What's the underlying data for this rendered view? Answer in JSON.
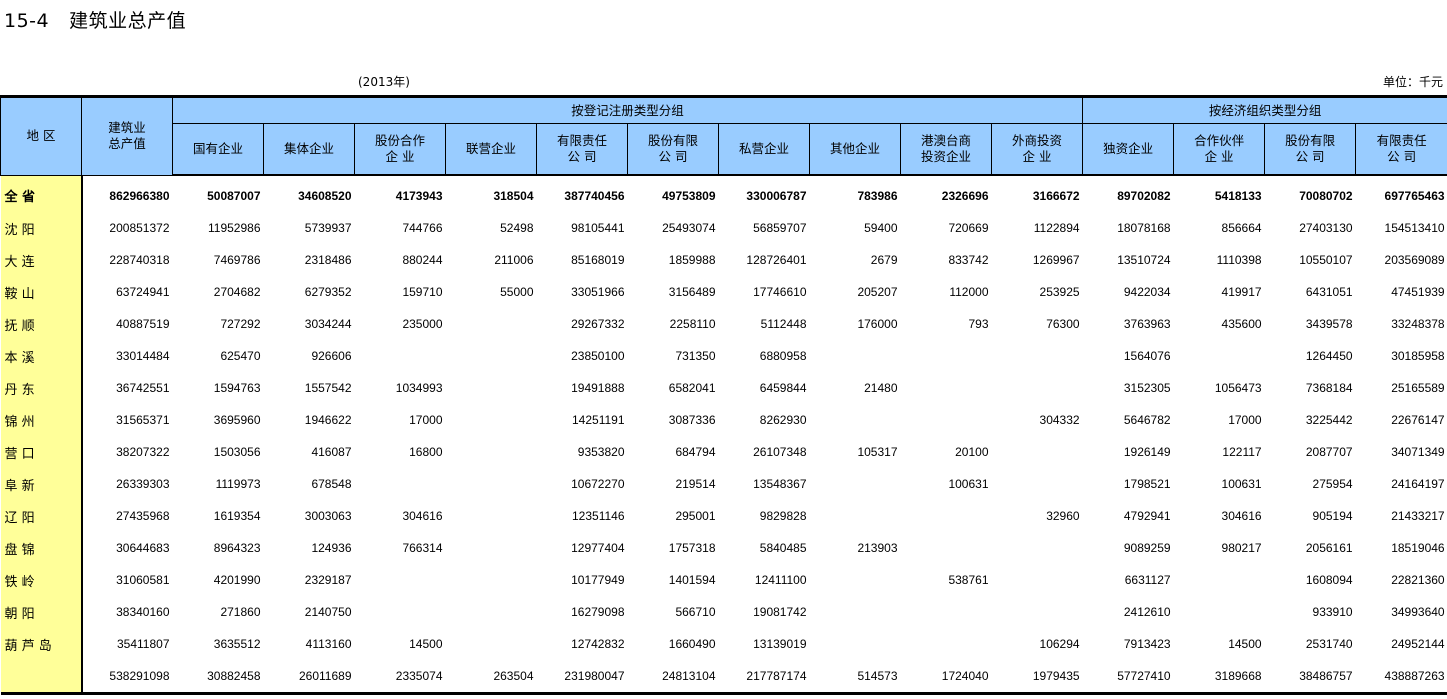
{
  "title": {
    "number": "15-4",
    "text": "建筑业总产值"
  },
  "year": "(2013年)",
  "unit": "单位：千元",
  "header": {
    "region": "地  区",
    "total": "建筑业\n总产值",
    "group1": "按登记注册类型分组",
    "group2": "按经济组织类型分组",
    "group1_cols": [
      "国有企业",
      "集体企业",
      "股份合作\n企  业",
      "联营企业",
      "有限责任\n公  司",
      "股份有限\n公  司",
      "私营企业",
      "其他企业",
      "港澳台商\n投资企业",
      "外商投资\n企  业"
    ],
    "group2_cols": [
      "独资企业",
      "合作伙伴\n企  业",
      "股份有限\n公  司",
      "有限责任\n公  司"
    ]
  },
  "colors": {
    "header_bg": "#99ccff",
    "region_bg": "#ffff99"
  },
  "rows": [
    {
      "region": "全      省",
      "values": [
        "862966380",
        "50087007",
        "34608520",
        "4173943",
        "318504",
        "387740456",
        "49753809",
        "330006787",
        "783986",
        "2326696",
        "3166672",
        "89702082",
        "5418133",
        "70080702",
        "697765463"
      ]
    },
    {
      "region": "沈      阳",
      "values": [
        "200851372",
        "11952986",
        "5739937",
        "744766",
        "52498",
        "98105441",
        "25493074",
        "56859707",
        "59400",
        "720669",
        "1122894",
        "18078168",
        "856664",
        "27403130",
        "154513410"
      ]
    },
    {
      "region": "大      连",
      "values": [
        "228740318",
        "7469786",
        "2318486",
        "880244",
        "211006",
        "85168019",
        "1859988",
        "128726401",
        "2679",
        "833742",
        "1269967",
        "13510724",
        "1110398",
        "10550107",
        "203569089"
      ]
    },
    {
      "region": "鞍      山",
      "values": [
        "63724941",
        "2704682",
        "6279352",
        "159710",
        "55000",
        "33051966",
        "3156489",
        "17746610",
        "205207",
        "112000",
        "253925",
        "9422034",
        "419917",
        "6431051",
        "47451939"
      ]
    },
    {
      "region": "抚      顺",
      "values": [
        "40887519",
        "727292",
        "3034244",
        "235000",
        "",
        "29267332",
        "2258110",
        "5112448",
        "176000",
        "793",
        "76300",
        "3763963",
        "435600",
        "3439578",
        "33248378"
      ]
    },
    {
      "region": "本      溪",
      "values": [
        "33014484",
        "625470",
        "926606",
        "",
        "",
        "23850100",
        "731350",
        "6880958",
        "",
        "",
        "",
        "1564076",
        "",
        "1264450",
        "30185958"
      ]
    },
    {
      "region": "丹      东",
      "values": [
        "36742551",
        "1594763",
        "1557542",
        "1034993",
        "",
        "19491888",
        "6582041",
        "6459844",
        "21480",
        "",
        "",
        "3152305",
        "1056473",
        "7368184",
        "25165589"
      ]
    },
    {
      "region": "锦      州",
      "values": [
        "31565371",
        "3695960",
        "1946622",
        "17000",
        "",
        "14251191",
        "3087336",
        "8262930",
        "",
        "",
        "304332",
        "5646782",
        "17000",
        "3225442",
        "22676147"
      ]
    },
    {
      "region": "营      口",
      "values": [
        "38207322",
        "1503056",
        "416087",
        "16800",
        "",
        "9353820",
        "684794",
        "26107348",
        "105317",
        "20100",
        "",
        "1926149",
        "122117",
        "2087707",
        "34071349"
      ]
    },
    {
      "region": "阜      新",
      "values": [
        "26339303",
        "1119973",
        "678548",
        "",
        "",
        "10672270",
        "219514",
        "13548367",
        "",
        "100631",
        "",
        "1798521",
        "100631",
        "275954",
        "24164197"
      ]
    },
    {
      "region": "辽      阳",
      "values": [
        "27435968",
        "1619354",
        "3003063",
        "304616",
        "",
        "12351146",
        "295001",
        "9829828",
        "",
        "",
        "32960",
        "4792941",
        "304616",
        "905194",
        "21433217"
      ]
    },
    {
      "region": "盘      锦",
      "values": [
        "30644683",
        "8964323",
        "124936",
        "766314",
        "",
        "12977404",
        "1757318",
        "5840485",
        "213903",
        "",
        "",
        "9089259",
        "980217",
        "2056161",
        "18519046"
      ]
    },
    {
      "region": "铁      岭",
      "values": [
        "31060581",
        "4201990",
        "2329187",
        "",
        "",
        "10177949",
        "1401594",
        "12411100",
        "",
        "538761",
        "",
        "6631127",
        "",
        "1608094",
        "22821360"
      ]
    },
    {
      "region": "朝      阳",
      "values": [
        "38340160",
        "271860",
        "2140750",
        "",
        "",
        "16279098",
        "566710",
        "19081742",
        "",
        "",
        "",
        "2412610",
        "",
        "933910",
        "34993640"
      ]
    },
    {
      "region": "葫 芦 岛",
      "values": [
        "35411807",
        "3635512",
        "4113160",
        "14500",
        "",
        "12742832",
        "1660490",
        "13139019",
        "",
        "",
        "106294",
        "7913423",
        "14500",
        "2531740",
        "24952144"
      ]
    },
    {
      "region": "",
      "values": [
        "538291098",
        "30882458",
        "26011689",
        "2335074",
        "263504",
        "231980047",
        "24813104",
        "217787174",
        "514573",
        "1724040",
        "1979435",
        "57727410",
        "3189668",
        "38486757",
        "438887263"
      ]
    }
  ]
}
